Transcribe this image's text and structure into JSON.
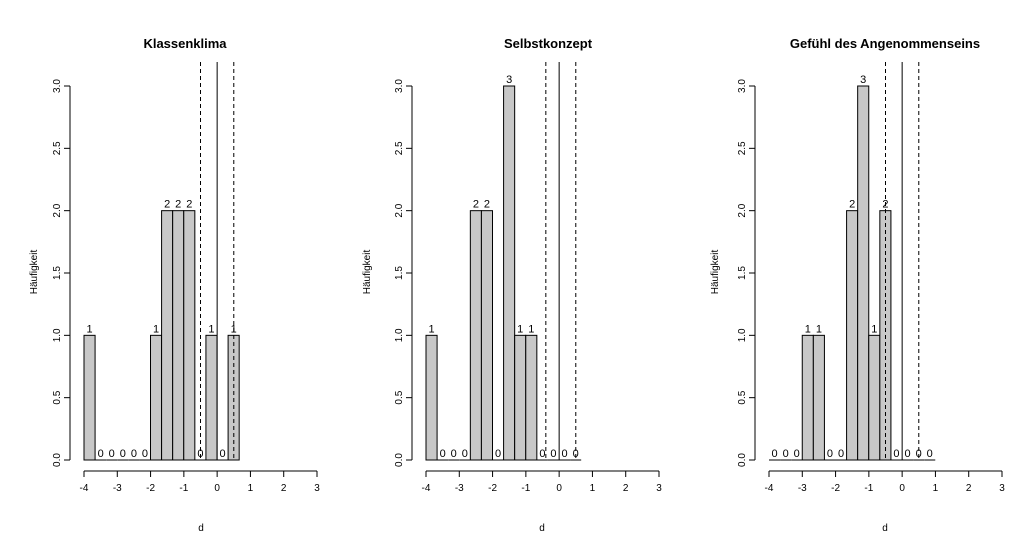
{
  "chart_data": [
    {
      "type": "bar",
      "title": "Klassenklima",
      "xlabel": "d",
      "ylabel": "Häufigkeit",
      "xlim": [
        -4,
        3
      ],
      "ylim": [
        0,
        3
      ],
      "bin_width": 0.333,
      "bin_start": -4,
      "counts": [
        1,
        0,
        0,
        0,
        0,
        0,
        1,
        2,
        2,
        2,
        0,
        1,
        0,
        1
      ],
      "vlines_dashed": [
        -0.5,
        0.5
      ],
      "vline_solid": 0,
      "xticks": [
        "-4",
        "-3",
        "-2",
        "-1",
        "0",
        "1",
        "2",
        "3"
      ],
      "yticks": [
        "0.0",
        "0.5",
        "1.0",
        "1.5",
        "2.0",
        "2.5",
        "3.0"
      ]
    },
    {
      "type": "bar",
      "title": "Selbstkonzept",
      "xlabel": "d",
      "ylabel": "Häufigkeit",
      "xlim": [
        -4,
        3
      ],
      "ylim": [
        0,
        3
      ],
      "bin_width": 0.333,
      "bin_start": -4,
      "counts": [
        1,
        0,
        0,
        0,
        2,
        2,
        0,
        3,
        1,
        1,
        0,
        0,
        0,
        0
      ],
      "vlines_dashed": [
        -0.4,
        0.5
      ],
      "vline_solid": 0,
      "xticks": [
        "-4",
        "-3",
        "-2",
        "-1",
        "0",
        "1",
        "2",
        "3"
      ],
      "yticks": [
        "0.0",
        "0.5",
        "1.0",
        "1.5",
        "2.0",
        "2.5",
        "3.0"
      ]
    },
    {
      "type": "bar",
      "title": "Gefühl des Angenommenseins",
      "xlabel": "d",
      "ylabel": "Häufigkeit",
      "xlim": [
        -4,
        3
      ],
      "ylim": [
        0,
        3
      ],
      "bin_width": 0.333,
      "bin_start": -4,
      "counts": [
        0,
        0,
        0,
        1,
        1,
        0,
        0,
        2,
        3,
        1,
        2,
        0,
        0,
        0,
        0
      ],
      "vlines_dashed": [
        -0.5,
        0.5
      ],
      "vline_solid": 0,
      "xticks": [
        "-4",
        "-3",
        "-2",
        "-1",
        "0",
        "1",
        "2",
        "3"
      ],
      "yticks": [
        "0.0",
        "0.5",
        "1.0",
        "1.5",
        "2.0",
        "2.5",
        "3.0"
      ]
    }
  ]
}
